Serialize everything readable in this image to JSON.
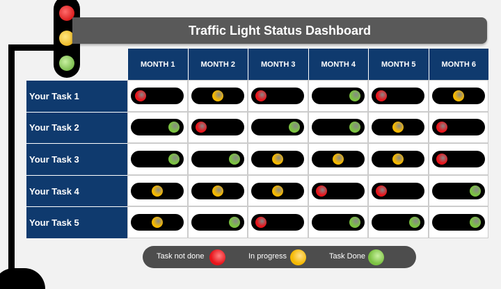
{
  "title": "Traffic Light Status Dashboard",
  "colors": {
    "red": "#e8141b",
    "yellow": "#f5b800",
    "green": "#7cc242",
    "header": "#0f3a6e"
  },
  "months": [
    "MONTH 1",
    "MONTH 2",
    "MONTH 3",
    "MONTH 4",
    "MONTH 5",
    "MONTH 6"
  ],
  "tasks": [
    {
      "label": "Your Task 1",
      "status": [
        "red",
        "yellow",
        "red",
        "green",
        "red",
        "yellow"
      ]
    },
    {
      "label": "Your Task 2",
      "status": [
        "green",
        "red",
        "green",
        "green",
        "yellow",
        "red"
      ]
    },
    {
      "label": "Your Task 3",
      "status": [
        "green",
        "green",
        "yellow",
        "yellow",
        "yellow",
        "red"
      ]
    },
    {
      "label": "Your Task 4",
      "status": [
        "yellow",
        "yellow",
        "yellow",
        "red",
        "red",
        "green"
      ]
    },
    {
      "label": "Your Task 5",
      "status": [
        "yellow",
        "green",
        "red",
        "green",
        "green",
        "green"
      ]
    }
  ],
  "legend": {
    "not_done": "Task not done",
    "in_progress": "In progress",
    "done": "Task Done"
  }
}
